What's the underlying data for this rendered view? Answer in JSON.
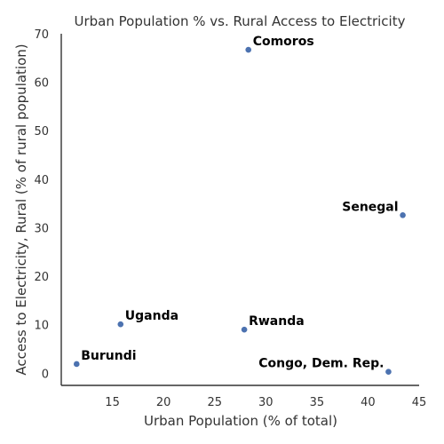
{
  "chart_data": {
    "type": "scatter",
    "title": "Urban Population % vs. Rural Access to Electricity",
    "xlabel": "Urban Population (% of total)",
    "ylabel": "Access to Electricity, Rural (% of rural population)",
    "xlim": [
      10,
      45
    ],
    "ylim": [
      -2.5,
      70
    ],
    "xticks": [
      15,
      20,
      25,
      30,
      35,
      40,
      45
    ],
    "yticks": [
      0,
      10,
      20,
      30,
      40,
      50,
      60,
      70
    ],
    "grid": false,
    "marker_color": "#4c72b0",
    "points": [
      {
        "label": "Comoros",
        "x": 28.3,
        "y": 66.7,
        "label_side": "right"
      },
      {
        "label": "Senegal",
        "x": 43.4,
        "y": 32.6,
        "label_side": "left"
      },
      {
        "label": "Uganda",
        "x": 15.8,
        "y": 10.1,
        "label_side": "right"
      },
      {
        "label": "Rwanda",
        "x": 27.9,
        "y": 9.0,
        "label_side": "right"
      },
      {
        "label": "Burundi",
        "x": 11.5,
        "y": 1.9,
        "label_side": "right"
      },
      {
        "label": "Congo, Dem. Rep.",
        "x": 42.0,
        "y": 0.3,
        "label_side": "left"
      }
    ]
  }
}
